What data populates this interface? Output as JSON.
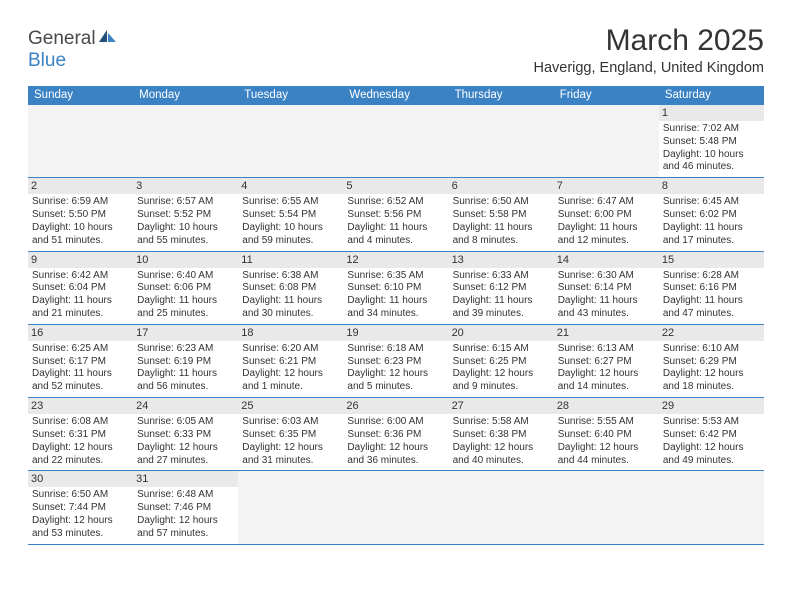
{
  "logo": {
    "text1": "General",
    "text2": "Blue"
  },
  "title": "March 2025",
  "location": "Haverigg, England, United Kingdom",
  "colors": {
    "header_bg": "#3b82c4",
    "daynum_bg": "#e9e9e9",
    "empty_bg": "#f3f3f3",
    "row_border": "#3b82c4",
    "text": "#333333"
  },
  "days_of_week": [
    "Sunday",
    "Monday",
    "Tuesday",
    "Wednesday",
    "Thursday",
    "Friday",
    "Saturday"
  ],
  "weeks": [
    [
      null,
      null,
      null,
      null,
      null,
      null,
      {
        "n": "1",
        "sunrise": "Sunrise: 7:02 AM",
        "sunset": "Sunset: 5:48 PM",
        "day1": "Daylight: 10 hours",
        "day2": "and 46 minutes."
      }
    ],
    [
      {
        "n": "2",
        "sunrise": "Sunrise: 6:59 AM",
        "sunset": "Sunset: 5:50 PM",
        "day1": "Daylight: 10 hours",
        "day2": "and 51 minutes."
      },
      {
        "n": "3",
        "sunrise": "Sunrise: 6:57 AM",
        "sunset": "Sunset: 5:52 PM",
        "day1": "Daylight: 10 hours",
        "day2": "and 55 minutes."
      },
      {
        "n": "4",
        "sunrise": "Sunrise: 6:55 AM",
        "sunset": "Sunset: 5:54 PM",
        "day1": "Daylight: 10 hours",
        "day2": "and 59 minutes."
      },
      {
        "n": "5",
        "sunrise": "Sunrise: 6:52 AM",
        "sunset": "Sunset: 5:56 PM",
        "day1": "Daylight: 11 hours",
        "day2": "and 4 minutes."
      },
      {
        "n": "6",
        "sunrise": "Sunrise: 6:50 AM",
        "sunset": "Sunset: 5:58 PM",
        "day1": "Daylight: 11 hours",
        "day2": "and 8 minutes."
      },
      {
        "n": "7",
        "sunrise": "Sunrise: 6:47 AM",
        "sunset": "Sunset: 6:00 PM",
        "day1": "Daylight: 11 hours",
        "day2": "and 12 minutes."
      },
      {
        "n": "8",
        "sunrise": "Sunrise: 6:45 AM",
        "sunset": "Sunset: 6:02 PM",
        "day1": "Daylight: 11 hours",
        "day2": "and 17 minutes."
      }
    ],
    [
      {
        "n": "9",
        "sunrise": "Sunrise: 6:42 AM",
        "sunset": "Sunset: 6:04 PM",
        "day1": "Daylight: 11 hours",
        "day2": "and 21 minutes."
      },
      {
        "n": "10",
        "sunrise": "Sunrise: 6:40 AM",
        "sunset": "Sunset: 6:06 PM",
        "day1": "Daylight: 11 hours",
        "day2": "and 25 minutes."
      },
      {
        "n": "11",
        "sunrise": "Sunrise: 6:38 AM",
        "sunset": "Sunset: 6:08 PM",
        "day1": "Daylight: 11 hours",
        "day2": "and 30 minutes."
      },
      {
        "n": "12",
        "sunrise": "Sunrise: 6:35 AM",
        "sunset": "Sunset: 6:10 PM",
        "day1": "Daylight: 11 hours",
        "day2": "and 34 minutes."
      },
      {
        "n": "13",
        "sunrise": "Sunrise: 6:33 AM",
        "sunset": "Sunset: 6:12 PM",
        "day1": "Daylight: 11 hours",
        "day2": "and 39 minutes."
      },
      {
        "n": "14",
        "sunrise": "Sunrise: 6:30 AM",
        "sunset": "Sunset: 6:14 PM",
        "day1": "Daylight: 11 hours",
        "day2": "and 43 minutes."
      },
      {
        "n": "15",
        "sunrise": "Sunrise: 6:28 AM",
        "sunset": "Sunset: 6:16 PM",
        "day1": "Daylight: 11 hours",
        "day2": "and 47 minutes."
      }
    ],
    [
      {
        "n": "16",
        "sunrise": "Sunrise: 6:25 AM",
        "sunset": "Sunset: 6:17 PM",
        "day1": "Daylight: 11 hours",
        "day2": "and 52 minutes."
      },
      {
        "n": "17",
        "sunrise": "Sunrise: 6:23 AM",
        "sunset": "Sunset: 6:19 PM",
        "day1": "Daylight: 11 hours",
        "day2": "and 56 minutes."
      },
      {
        "n": "18",
        "sunrise": "Sunrise: 6:20 AM",
        "sunset": "Sunset: 6:21 PM",
        "day1": "Daylight: 12 hours",
        "day2": "and 1 minute."
      },
      {
        "n": "19",
        "sunrise": "Sunrise: 6:18 AM",
        "sunset": "Sunset: 6:23 PM",
        "day1": "Daylight: 12 hours",
        "day2": "and 5 minutes."
      },
      {
        "n": "20",
        "sunrise": "Sunrise: 6:15 AM",
        "sunset": "Sunset: 6:25 PM",
        "day1": "Daylight: 12 hours",
        "day2": "and 9 minutes."
      },
      {
        "n": "21",
        "sunrise": "Sunrise: 6:13 AM",
        "sunset": "Sunset: 6:27 PM",
        "day1": "Daylight: 12 hours",
        "day2": "and 14 minutes."
      },
      {
        "n": "22",
        "sunrise": "Sunrise: 6:10 AM",
        "sunset": "Sunset: 6:29 PM",
        "day1": "Daylight: 12 hours",
        "day2": "and 18 minutes."
      }
    ],
    [
      {
        "n": "23",
        "sunrise": "Sunrise: 6:08 AM",
        "sunset": "Sunset: 6:31 PM",
        "day1": "Daylight: 12 hours",
        "day2": "and 22 minutes."
      },
      {
        "n": "24",
        "sunrise": "Sunrise: 6:05 AM",
        "sunset": "Sunset: 6:33 PM",
        "day1": "Daylight: 12 hours",
        "day2": "and 27 minutes."
      },
      {
        "n": "25",
        "sunrise": "Sunrise: 6:03 AM",
        "sunset": "Sunset: 6:35 PM",
        "day1": "Daylight: 12 hours",
        "day2": "and 31 minutes."
      },
      {
        "n": "26",
        "sunrise": "Sunrise: 6:00 AM",
        "sunset": "Sunset: 6:36 PM",
        "day1": "Daylight: 12 hours",
        "day2": "and 36 minutes."
      },
      {
        "n": "27",
        "sunrise": "Sunrise: 5:58 AM",
        "sunset": "Sunset: 6:38 PM",
        "day1": "Daylight: 12 hours",
        "day2": "and 40 minutes."
      },
      {
        "n": "28",
        "sunrise": "Sunrise: 5:55 AM",
        "sunset": "Sunset: 6:40 PM",
        "day1": "Daylight: 12 hours",
        "day2": "and 44 minutes."
      },
      {
        "n": "29",
        "sunrise": "Sunrise: 5:53 AM",
        "sunset": "Sunset: 6:42 PM",
        "day1": "Daylight: 12 hours",
        "day2": "and 49 minutes."
      }
    ],
    [
      {
        "n": "30",
        "sunrise": "Sunrise: 6:50 AM",
        "sunset": "Sunset: 7:44 PM",
        "day1": "Daylight: 12 hours",
        "day2": "and 53 minutes."
      },
      {
        "n": "31",
        "sunrise": "Sunrise: 6:48 AM",
        "sunset": "Sunset: 7:46 PM",
        "day1": "Daylight: 12 hours",
        "day2": "and 57 minutes."
      },
      null,
      null,
      null,
      null,
      null
    ]
  ]
}
